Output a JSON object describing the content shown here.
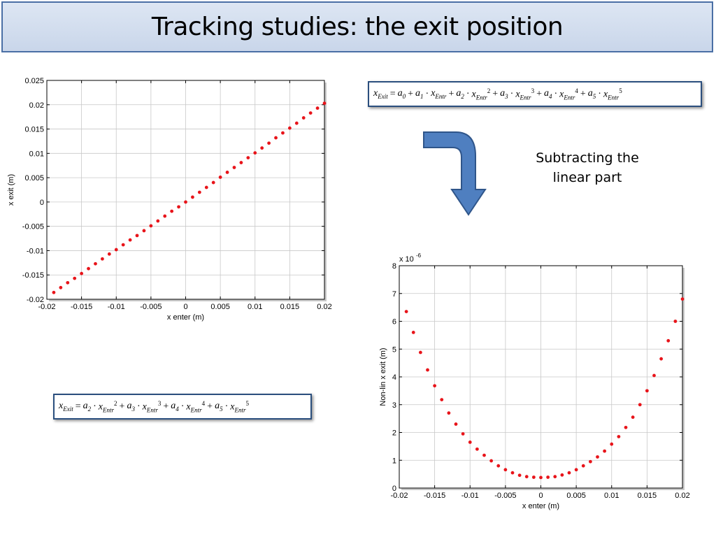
{
  "title": "Tracking studies: the exit position",
  "note": "Subtracting the linear part",
  "equation_full": "x_Exit = a_0 + a_1·x_Entr + a_2·x_Entr^2 + a_3·x_Entr^3 + a_4·x_Entr^4 + a_5·x_Entr^5",
  "equation_nonlin": "x_Exit = a_2·x_Entr^2 + a_3·x_Entr^3 + a_4·x_Entr^4 + a_5·x_Entr^5",
  "colors": {
    "marker": "#e8141a",
    "frame": "#2b4f7e",
    "arrow": "#4f7fc0",
    "arrow_edge": "#2f558a"
  },
  "chart_data": [
    {
      "type": "scatter",
      "xlabel": "x enter (m)",
      "ylabel": "x exit (m)",
      "xlim": [
        -0.02,
        0.02
      ],
      "ylim": [
        -0.02,
        0.025
      ],
      "xticks": [
        -0.02,
        -0.015,
        -0.01,
        -0.005,
        0,
        0.005,
        0.01,
        0.015,
        0.02
      ],
      "xtick_labels": [
        "-0.02",
        "-0.015",
        "-0.01",
        "-0.005",
        "0",
        "0.005",
        "0.01",
        "0.015",
        "0.02"
      ],
      "yticks": [
        -0.02,
        -0.015,
        -0.01,
        -0.005,
        0,
        0.005,
        0.01,
        0.015,
        0.02,
        0.025
      ],
      "ytick_labels": [
        "-0.02",
        "-0.015",
        "-0.01",
        "-0.005",
        "0",
        "0.005",
        "0.01",
        "0.015",
        "0.02",
        "0.025"
      ],
      "grid": true,
      "x": [
        -0.019,
        -0.018,
        -0.017,
        -0.016,
        -0.015,
        -0.014,
        -0.013,
        -0.012,
        -0.011,
        -0.01,
        -0.009,
        -0.008,
        -0.007,
        -0.006,
        -0.005,
        -0.004,
        -0.003,
        -0.002,
        -0.001,
        0,
        0.001,
        0.002,
        0.003,
        0.004,
        0.005,
        0.006,
        0.007,
        0.008,
        0.009,
        0.01,
        0.011,
        0.012,
        0.013,
        0.014,
        0.015,
        0.016,
        0.017,
        0.018,
        0.019,
        0.02
      ],
      "y": [
        -0.0186,
        -0.0176,
        -0.0166,
        -0.0157,
        -0.0147,
        -0.0137,
        -0.0127,
        -0.0117,
        -0.0107,
        -0.0098,
        -0.0088,
        -0.0078,
        -0.0069,
        -0.0059,
        -0.0049,
        -0.0039,
        -0.0029,
        -0.0019,
        -0.001,
        0.0,
        0.001,
        0.002,
        0.003,
        0.004,
        0.0051,
        0.0061,
        0.0071,
        0.0081,
        0.0091,
        0.0101,
        0.0111,
        0.0121,
        0.0132,
        0.0142,
        0.0152,
        0.0162,
        0.0173,
        0.0183,
        0.0193,
        0.0203
      ]
    },
    {
      "type": "scatter",
      "xlabel": "x enter (m)",
      "ylabel": "Non-lin x exit (m)",
      "y_multiplier_label": "x 10",
      "y_multiplier_exp": "-6",
      "xlim": [
        -0.02,
        0.02
      ],
      "ylim": [
        0,
        8
      ],
      "xticks": [
        -0.02,
        -0.015,
        -0.01,
        -0.005,
        0,
        0.005,
        0.01,
        0.015,
        0.02
      ],
      "xtick_labels": [
        "-0.02",
        "-0.015",
        "-0.01",
        "-0.005",
        "0",
        "0.005",
        "0.01",
        "0.015",
        "0.02"
      ],
      "yticks": [
        0,
        1,
        2,
        3,
        4,
        5,
        6,
        7,
        8
      ],
      "ytick_labels": [
        "0",
        "1",
        "2",
        "3",
        "4",
        "5",
        "6",
        "7",
        "8"
      ],
      "grid": true,
      "x": [
        -0.019,
        -0.018,
        -0.017,
        -0.016,
        -0.015,
        -0.014,
        -0.013,
        -0.012,
        -0.011,
        -0.01,
        -0.009,
        -0.008,
        -0.007,
        -0.006,
        -0.005,
        -0.004,
        -0.003,
        -0.002,
        -0.001,
        0,
        0.001,
        0.002,
        0.003,
        0.004,
        0.005,
        0.006,
        0.007,
        0.008,
        0.009,
        0.01,
        0.011,
        0.012,
        0.013,
        0.014,
        0.015,
        0.016,
        0.017,
        0.018,
        0.019,
        0.02
      ],
      "y": [
        6.35,
        5.6,
        4.88,
        4.25,
        3.68,
        3.18,
        2.7,
        2.3,
        1.95,
        1.65,
        1.4,
        1.18,
        0.98,
        0.8,
        0.66,
        0.55,
        0.46,
        0.41,
        0.39,
        0.38,
        0.39,
        0.41,
        0.47,
        0.55,
        0.66,
        0.8,
        0.95,
        1.12,
        1.33,
        1.58,
        1.85,
        2.18,
        2.55,
        3.0,
        3.5,
        4.05,
        4.65,
        5.3,
        6.0,
        6.8
      ]
    }
  ]
}
